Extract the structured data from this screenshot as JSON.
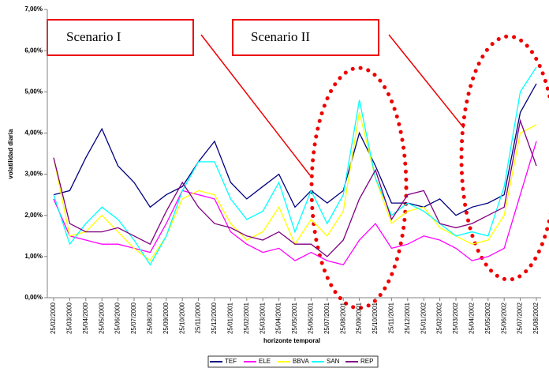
{
  "chart_data": {
    "type": "line",
    "y_label": "volatilidad diaria",
    "x_label": "horizonte temporal",
    "annotations": [
      "Scenario I",
      "Scenario II"
    ],
    "x": [
      "25/02/2000",
      "25/03/2000",
      "25/04/2000",
      "25/05/2000",
      "25/06/2000",
      "25/07/2000",
      "25/08/2000",
      "25/09/2000",
      "25/10/2000",
      "25/11/2000",
      "25/12/2000",
      "25/01/2001",
      "25/02/2001",
      "25/03/2001",
      "25/04/2001",
      "25/05/2001",
      "25/06/2001",
      "25/07/2001",
      "25/08/2001",
      "25/09/2001",
      "25/10/2001",
      "25/11/2001",
      "25/12/2001",
      "25/01/2002",
      "25/02/2002",
      "25/03/2002",
      "25/04/2002",
      "25/05/2002",
      "25/06/2002",
      "25/07/2002",
      "25/08/2002"
    ],
    "series": [
      {
        "name": "TEF",
        "color": "#000080",
        "values": [
          2.5,
          2.6,
          3.4,
          4.1,
          3.2,
          2.8,
          2.2,
          2.5,
          2.7,
          3.3,
          3.8,
          2.8,
          2.4,
          2.7,
          3.0,
          2.2,
          2.6,
          2.3,
          2.6,
          4.0,
          3.2,
          2.3,
          2.3,
          2.2,
          2.4,
          2.0,
          2.2,
          2.3,
          2.5,
          4.5,
          5.2
        ]
      },
      {
        "name": "ELE",
        "color": "#ff00ff",
        "values": [
          2.4,
          1.5,
          1.4,
          1.3,
          1.3,
          1.2,
          1.1,
          1.8,
          2.6,
          2.5,
          2.4,
          1.6,
          1.3,
          1.1,
          1.2,
          0.9,
          1.1,
          0.9,
          0.8,
          1.4,
          1.8,
          1.2,
          1.3,
          1.5,
          1.4,
          1.2,
          0.9,
          1.0,
          1.2,
          2.5,
          3.8
        ]
      },
      {
        "name": "BBVA",
        "color": "#ffff00",
        "values": [
          3.4,
          1.5,
          1.6,
          2.0,
          1.6,
          1.2,
          0.9,
          1.5,
          2.4,
          2.6,
          2.5,
          1.8,
          1.4,
          1.6,
          2.2,
          1.3,
          1.9,
          1.5,
          2.1,
          4.5,
          2.9,
          1.8,
          2.1,
          2.2,
          1.7,
          1.5,
          1.3,
          1.4,
          2.0,
          4.0,
          4.2
        ]
      },
      {
        "name": "SAN",
        "color": "#00ffff",
        "values": [
          2.5,
          1.3,
          1.8,
          2.2,
          1.9,
          1.4,
          0.8,
          1.5,
          2.6,
          3.3,
          3.3,
          2.4,
          1.9,
          2.1,
          2.8,
          1.6,
          2.6,
          1.8,
          2.5,
          4.8,
          2.9,
          2.0,
          2.3,
          2.1,
          1.8,
          1.5,
          1.6,
          1.5,
          2.7,
          5.0,
          5.6
        ]
      },
      {
        "name": "REP",
        "color": "#800080",
        "values": [
          3.4,
          1.8,
          1.6,
          1.6,
          1.7,
          1.5,
          1.3,
          2.1,
          2.8,
          2.2,
          1.8,
          1.7,
          1.5,
          1.4,
          1.6,
          1.3,
          1.3,
          1.0,
          1.4,
          2.4,
          3.1,
          1.9,
          2.5,
          2.6,
          1.8,
          1.7,
          1.8,
          2.0,
          2.2,
          4.3,
          3.2
        ]
      }
    ],
    "ylim": [
      0,
      7
    ],
    "yticks": [
      {
        "value": 0,
        "label": "0,00%"
      },
      {
        "value": 1,
        "label": "1,00%"
      },
      {
        "value": 2,
        "label": "2,00%"
      },
      {
        "value": 3,
        "label": "3,00%"
      },
      {
        "value": 4,
        "label": "4,00%"
      },
      {
        "value": 5,
        "label": "5,00%"
      },
      {
        "value": 6,
        "label": "6,00%"
      },
      {
        "value": 7,
        "label": "7,00%"
      }
    ],
    "grid": false,
    "legend": "bottom"
  }
}
